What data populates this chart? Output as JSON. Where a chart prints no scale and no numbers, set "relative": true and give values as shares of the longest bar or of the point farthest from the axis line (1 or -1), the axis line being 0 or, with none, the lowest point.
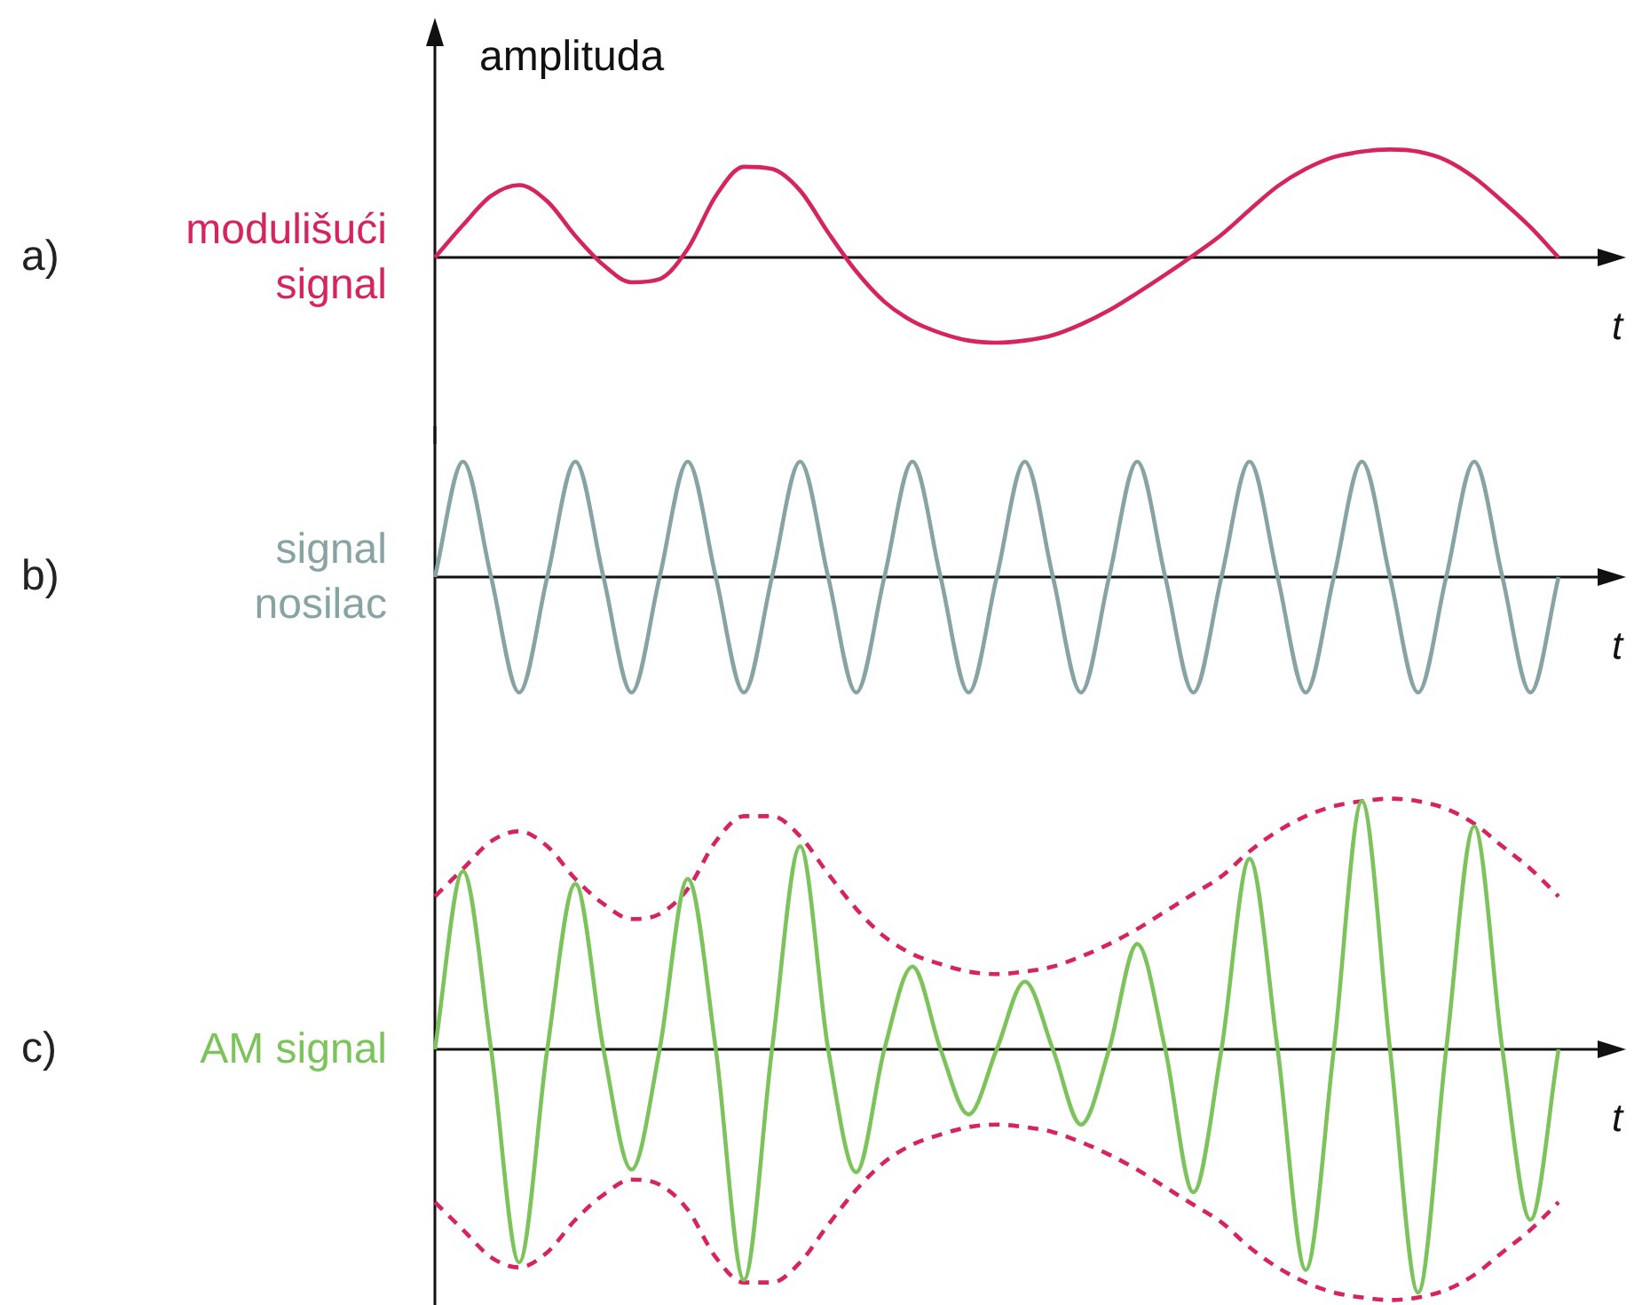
{
  "chart_data": [
    {
      "type": "line",
      "relative": true,
      "ylabel": "amplituda",
      "xlabel": "t",
      "annotations": [
        "a)"
      ],
      "legend": false,
      "marker": "none",
      "categories": [
        null,
        null,
        null,
        null,
        null,
        null,
        null,
        null,
        null,
        null,
        null,
        null,
        null,
        null,
        null,
        null,
        null,
        null,
        null,
        null,
        null,
        null,
        null,
        null,
        null,
        null,
        null,
        null,
        null,
        null,
        null,
        null,
        null,
        null,
        null,
        null,
        null,
        null,
        null,
        null,
        null
      ],
      "series": [
        {
          "name": "modulišući signal",
          "color": "#d6245e",
          "line_style": "solid",
          "values": [
            0,
            0.3,
            0.57,
            0.67,
            0.52,
            0.2,
            -0.07,
            -0.23,
            -0.2,
            0.08,
            0.57,
            0.84,
            0.82,
            0.62,
            0.23,
            -0.13,
            -0.41,
            -0.59,
            -0.7,
            -0.77,
            -0.79,
            -0.77,
            -0.72,
            -0.62,
            -0.49,
            -0.33,
            -0.16,
            0.02,
            0.21,
            0.44,
            0.66,
            0.82,
            0.93,
            0.98,
            1,
            0.98,
            0.9,
            0.74,
            0.52,
            0.28,
            0
          ]
        }
      ]
    },
    {
      "type": "line",
      "relative": true,
      "xlabel": "t",
      "annotations": [
        "b)"
      ],
      "legend": false,
      "marker": "none",
      "categories": [
        null,
        null,
        null,
        null,
        null,
        null,
        null,
        null,
        null,
        null,
        null,
        null,
        null,
        null,
        null,
        null,
        null,
        null,
        null,
        null,
        null,
        null,
        null,
        null,
        null,
        null,
        null,
        null,
        null,
        null,
        null,
        null,
        null,
        null,
        null,
        null,
        null,
        null,
        null,
        null,
        null
      ],
      "series": [
        {
          "name": "signal nosilac",
          "color": "#87a3a3",
          "line_style": "solid",
          "values": [
            0,
            1,
            0,
            -1,
            0,
            1,
            0,
            -1,
            0,
            1,
            0,
            -1,
            0,
            1,
            0,
            -1,
            0,
            1,
            0,
            -1,
            0,
            1,
            0,
            -1,
            0,
            1,
            0,
            -1,
            0,
            1,
            0,
            -1,
            0,
            1,
            0,
            -1,
            0,
            1,
            0,
            -1,
            0
          ]
        }
      ]
    },
    {
      "type": "line",
      "relative": true,
      "xlabel": "t",
      "annotations": [
        "c)"
      ],
      "legend": false,
      "marker": "none",
      "categories": [
        null,
        null,
        null,
        null,
        null,
        null,
        null,
        null,
        null,
        null,
        null,
        null,
        null,
        null,
        null,
        null,
        null,
        null,
        null,
        null,
        null,
        null,
        null,
        null,
        null,
        null,
        null,
        null,
        null,
        null,
        null,
        null,
        null,
        null,
        null,
        null,
        null,
        null,
        null,
        null,
        null
      ],
      "series": [
        {
          "name": "AM signal",
          "color": "#7dc35b",
          "line_style": "solid",
          "values": [
            0,
            0.71,
            0,
            -0.85,
            0,
            0.66,
            0,
            -0.48,
            0,
            0.68,
            0,
            -0.92,
            0,
            0.81,
            0,
            -0.49,
            0,
            0.33,
            0,
            -0.26,
            0,
            0.27,
            0,
            -0.3,
            0,
            0.42,
            0,
            -0.57,
            0,
            0.76,
            0,
            -0.88,
            0,
            0.99,
            0,
            -0.97,
            0,
            0.89,
            0,
            -0.68,
            0
          ]
        },
        {
          "color": "#d6245e",
          "line_style": "dashed",
          "values": [
            0.61,
            0.72,
            0.83,
            0.87,
            0.81,
            0.68,
            0.58,
            0.52,
            0.54,
            0.64,
            0.83,
            0.93,
            0.93,
            0.85,
            0.7,
            0.56,
            0.45,
            0.38,
            0.34,
            0.31,
            0.3,
            0.31,
            0.33,
            0.37,
            0.42,
            0.48,
            0.55,
            0.62,
            0.69,
            0.79,
            0.87,
            0.93,
            0.97,
            0.99,
            1,
            0.99,
            0.96,
            0.9,
            0.81,
            0.72,
            0.61
          ]
        },
        {
          "color": "#d6245e",
          "line_style": "dashed",
          "values": [
            -0.61,
            -0.72,
            -0.83,
            -0.87,
            -0.81,
            -0.68,
            -0.58,
            -0.52,
            -0.54,
            -0.64,
            -0.83,
            -0.93,
            -0.93,
            -0.85,
            -0.7,
            -0.56,
            -0.45,
            -0.38,
            -0.34,
            -0.31,
            -0.3,
            -0.31,
            -0.33,
            -0.37,
            -0.42,
            -0.48,
            -0.55,
            -0.62,
            -0.69,
            -0.79,
            -0.87,
            -0.93,
            -0.97,
            -0.99,
            -1,
            -0.99,
            -0.96,
            -0.9,
            -0.81,
            -0.72,
            -0.61
          ]
        }
      ]
    }
  ]
}
